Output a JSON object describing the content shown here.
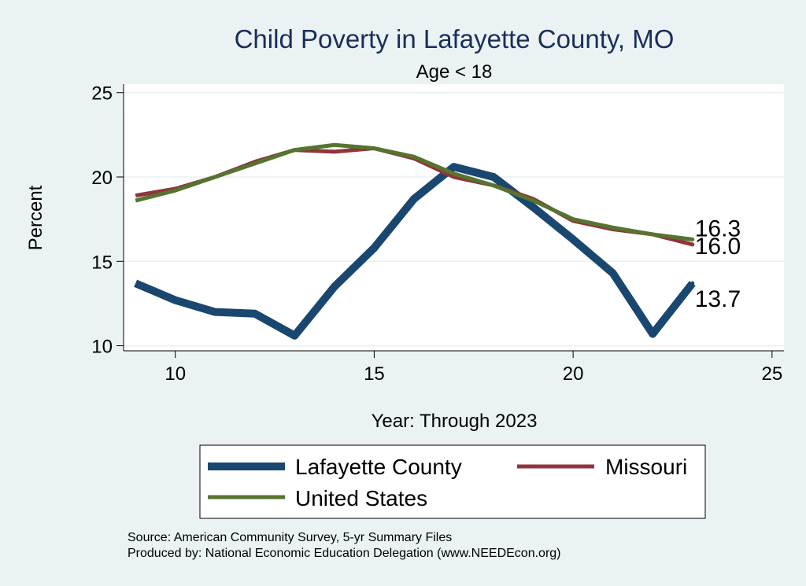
{
  "chart_data": {
    "type": "line",
    "title": "Child Poverty in Lafayette County, MO",
    "subtitle": "Age < 18",
    "xlabel": "Year: Through 2023",
    "ylabel": "Percent",
    "xlim": [
      8.7,
      25.3
    ],
    "ylim": [
      9.7,
      25.5
    ],
    "x_ticks": [
      10,
      15,
      20,
      25
    ],
    "y_ticks": [
      10,
      15,
      20,
      25
    ],
    "x": [
      9,
      10,
      11,
      12,
      13,
      14,
      15,
      16,
      17,
      18,
      19,
      20,
      21,
      22,
      23
    ],
    "series": [
      {
        "name": "Lafayette County",
        "color": "#1a476f",
        "values": [
          13.7,
          12.7,
          12.0,
          11.9,
          10.6,
          13.5,
          15.8,
          18.7,
          20.6,
          20.0,
          18.2,
          16.3,
          14.3,
          10.7,
          13.7
        ],
        "end_label": "13.7"
      },
      {
        "name": "Missouri",
        "color": "#90353b",
        "values": [
          18.9,
          19.3,
          20.0,
          20.9,
          21.6,
          21.5,
          21.7,
          21.1,
          20.0,
          19.5,
          18.7,
          17.4,
          16.9,
          16.6,
          16.0
        ],
        "end_label": "16.0"
      },
      {
        "name": "United States",
        "color": "#55752f",
        "values": [
          18.6,
          19.2,
          20.0,
          20.8,
          21.6,
          21.9,
          21.7,
          21.2,
          20.2,
          19.5,
          18.6,
          17.5,
          17.0,
          16.6,
          16.3
        ],
        "end_label": "16.3"
      }
    ],
    "legend": {
      "placement": "bottom"
    }
  },
  "notes": {
    "source": "Source: American Community Survey, 5-yr Summary Files",
    "produced_by": "Produced by: National Economic Education Delegation (www.NEEDEcon.org)"
  }
}
